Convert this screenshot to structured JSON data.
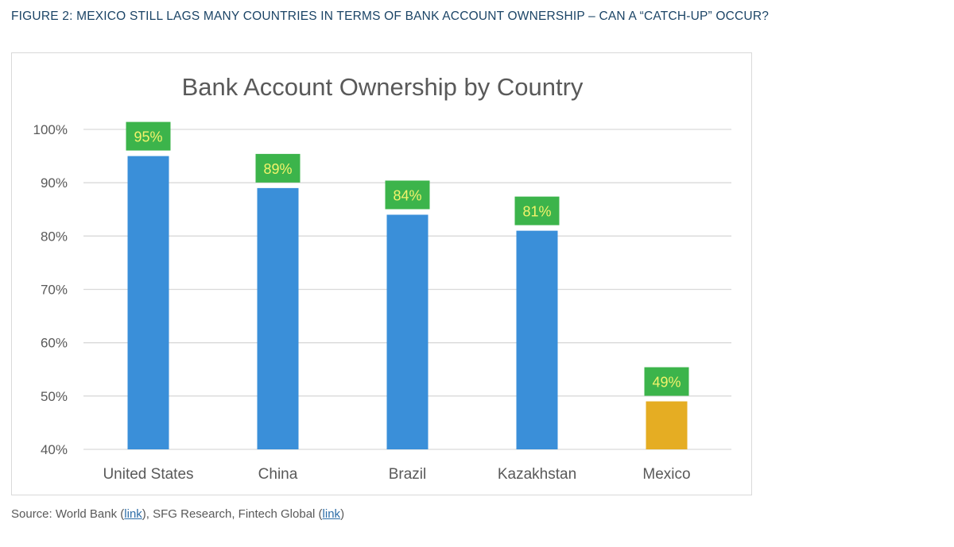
{
  "figure_caption": "FIGURE 2: MEXICO STILL LAGS MANY COUNTRIES IN TERMS OF BANK ACCOUNT OWNERSHIP – CAN A “CATCH-UP” OCCUR?",
  "source": {
    "prefix": "Source: World Bank (",
    "link1": "link",
    "middle": "), SFG Research, Fintech Global (",
    "link2": "link",
    "suffix": ")"
  },
  "colors": {
    "bar_default": "#3a8fd9",
    "bar_highlight": "#e5ad23",
    "label_bg": "#3cb44b",
    "label_text": "#f3f36b",
    "grid": "#d9d9d9",
    "axis_text": "#595959",
    "title_text": "#595959"
  },
  "chart_data": {
    "type": "bar",
    "title": "Bank Account Ownership by Country",
    "categories": [
      "United States",
      "China",
      "Brazil",
      "Kazakhstan",
      "Mexico"
    ],
    "values": [
      95,
      89,
      84,
      81,
      49
    ],
    "data_labels": [
      "95%",
      "89%",
      "84%",
      "81%",
      "49%"
    ],
    "highlight": [
      false,
      false,
      false,
      false,
      true
    ],
    "ylim": [
      40,
      100
    ],
    "yticks": [
      40,
      50,
      60,
      70,
      80,
      90,
      100
    ],
    "ytick_labels": [
      "40%",
      "50%",
      "60%",
      "70%",
      "80%",
      "90%",
      "100%"
    ],
    "grid": true,
    "legend": "none"
  }
}
